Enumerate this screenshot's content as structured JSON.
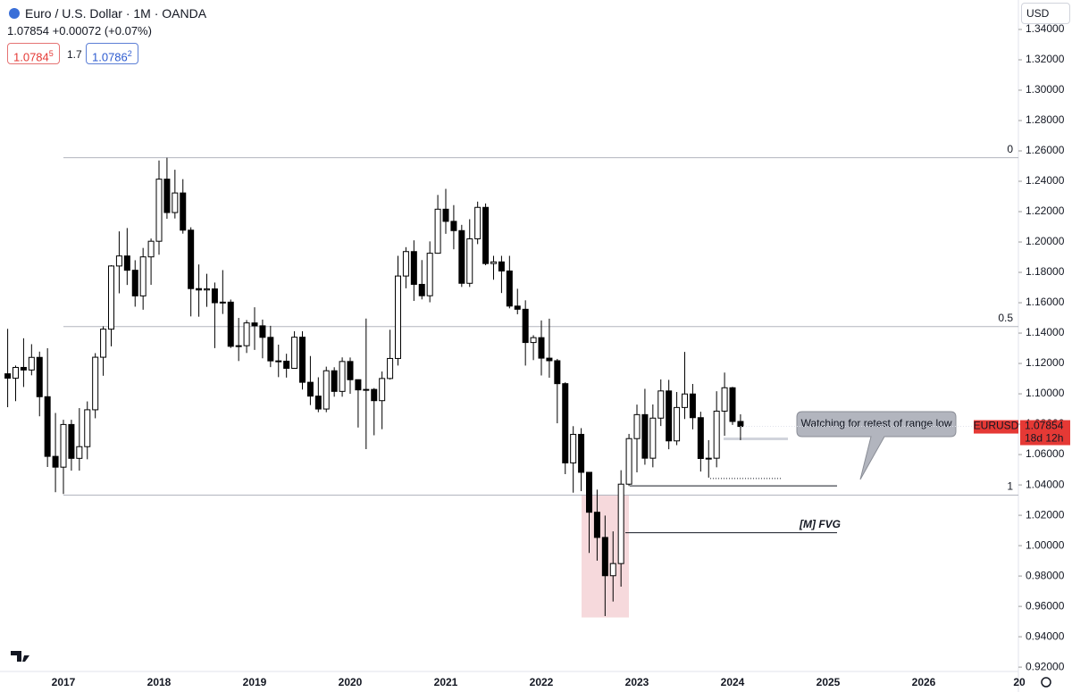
{
  "header": {
    "symbol": "Euro / U.S. Dollar · 1M · OANDA",
    "quote": "1.07854",
    "change": "+0.00072 (+0.07%)",
    "bid": {
      "main": "1.0784",
      "pip": "5"
    },
    "spread": "1.7",
    "ask": {
      "main": "1.0786",
      "pip": "2"
    },
    "currency": "USD"
  },
  "chart_data": {
    "type": "candlestick",
    "up_color": "#ffffff",
    "down_color": "#000000",
    "border_color": "#000000",
    "xticks": [
      "2017",
      "2018",
      "2019",
      "2020",
      "2021",
      "2022",
      "2023",
      "2024",
      "2025",
      "2026",
      "20"
    ],
    "open": [
      1.1132,
      1.1103,
      1.1174,
      1.1157,
      1.124,
      1.0981,
      1.0588,
      1.0517,
      1.0798,
      1.0575,
      1.0652,
      1.0895,
      1.1241,
      1.1426,
      1.1842,
      1.1908,
      1.1814,
      1.1645,
      1.1902,
      1.2005,
      1.2414,
      1.2194,
      1.2323,
      1.2078,
      1.1693,
      1.1684,
      1.1691,
      1.16,
      1.1604,
      1.1313,
      1.1317,
      1.1467,
      1.1448,
      1.1372,
      1.1217,
      1.1215,
      1.1168,
      1.1373,
      1.1076,
      1.0985,
      1.09,
      1.1152,
      1.1016,
      1.1213,
      1.1093,
      1.1026,
      1.1029,
      1.0955,
      1.1101,
      1.1233,
      1.1776,
      1.1937,
      1.1721,
      1.1646,
      1.1926,
      1.2216,
      1.2136,
      1.2075,
      1.1728,
      1.2021,
      1.2228,
      1.1858,
      1.1869,
      1.1809,
      1.1578,
      1.1557,
      1.1338,
      1.137,
      1.1235,
      1.1218,
      1.1067,
      1.0545,
      1.0733,
      1.0483,
      1.022,
      1.0054,
      0.9802,
      0.9882,
      1.0405,
      1.0705,
      1.0863,
      1.0576,
      1.084,
      1.1019,
      1.069,
      1.091,
      1.0999,
      1.0843,
      1.0574,
      1.0576,
      1.0886,
      1.104,
      1.0818
    ],
    "high": [
      1.1428,
      1.1186,
      1.1366,
      1.1327,
      1.1278,
      1.13,
      1.0874,
      1.0829,
      1.0829,
      1.0906,
      1.095,
      1.1268,
      1.1445,
      1.1847,
      1.207,
      1.2092,
      1.188,
      1.1961,
      1.2023,
      1.2537,
      1.2555,
      1.2476,
      1.2414,
      1.2097,
      1.1852,
      1.1791,
      1.1733,
      1.1815,
      1.1621,
      1.15,
      1.1486,
      1.157,
      1.1489,
      1.1448,
      1.1324,
      1.1264,
      1.1412,
      1.1412,
      1.1249,
      1.1109,
      1.1179,
      1.1175,
      1.124,
      1.1239,
      1.1095,
      1.1496,
      1.1038,
      1.1147,
      1.1422,
      1.1909,
      1.1966,
      1.2011,
      1.1881,
      1.2004,
      1.231,
      1.235,
      1.2243,
      1.2113,
      1.215,
      1.2266,
      1.2254,
      1.1909,
      1.1909,
      1.1909,
      1.1692,
      1.1616,
      1.1386,
      1.1483,
      1.1495,
      1.123,
      1.1076,
      1.0787,
      1.0774,
      1.0486,
      1.0369,
      1.0198,
      1.0094,
      1.0497,
      1.0736,
      1.0929,
      1.1033,
      1.093,
      1.1095,
      1.1092,
      1.1012,
      1.1276,
      1.1065,
      1.0882,
      1.0695,
      1.1017,
      1.114,
      1.1046,
      1.0865
    ],
    "low": [
      1.0912,
      1.0952,
      1.1045,
      1.1122,
      1.0852,
      1.0518,
      1.0352,
      1.034,
      1.0494,
      1.0494,
      1.0569,
      1.0839,
      1.1119,
      1.1313,
      1.1662,
      1.1717,
      1.1574,
      1.1554,
      1.1718,
      1.1916,
      1.2153,
      1.2155,
      1.2055,
      1.151,
      1.1508,
      1.1573,
      1.1301,
      1.1526,
      1.1302,
      1.1216,
      1.1269,
      1.1289,
      1.1234,
      1.1176,
      1.111,
      1.1107,
      1.1181,
      1.1028,
      1.0926,
      1.0879,
      1.0879,
      1.0981,
      1.0981,
      1.1,
      1.0778,
      1.0636,
      1.0727,
      1.0767,
      1.1094,
      1.1186,
      1.1695,
      1.1612,
      1.1622,
      1.1603,
      1.1923,
      1.2054,
      1.1952,
      1.1704,
      1.1704,
      1.1986,
      1.1847,
      1.1752,
      1.1664,
      1.1563,
      1.1524,
      1.1186,
      1.1222,
      1.1121,
      1.1106,
      1.0806,
      1.0471,
      1.0349,
      1.0359,
      0.9952,
      0.9901,
      0.9536,
      0.9632,
      0.973,
      1.0393,
      1.0483,
      1.0533,
      1.0516,
      1.0788,
      1.0635,
      1.0662,
      1.0834,
      1.0766,
      1.0488,
      1.0448,
      1.0516,
      1.0724,
      1.0795,
      1.0695
    ],
    "close": [
      1.1103,
      1.1174,
      1.1157,
      1.124,
      1.0981,
      1.0588,
      1.0517,
      1.0798,
      1.0575,
      1.0652,
      1.0895,
      1.1241,
      1.1426,
      1.1842,
      1.1908,
      1.1814,
      1.1645,
      1.1902,
      1.2005,
      1.2414,
      1.2194,
      1.2323,
      1.2078,
      1.1693,
      1.1684,
      1.1691,
      1.16,
      1.1604,
      1.1313,
      1.1317,
      1.1467,
      1.1448,
      1.1372,
      1.1217,
      1.1215,
      1.1168,
      1.1373,
      1.1076,
      1.0985,
      1.09,
      1.1152,
      1.1016,
      1.1213,
      1.1093,
      1.1026,
      1.1029,
      1.0955,
      1.1101,
      1.1233,
      1.1776,
      1.1937,
      1.1721,
      1.1646,
      1.1926,
      1.2216,
      1.2136,
      1.2075,
      1.1728,
      1.2021,
      1.2228,
      1.1858,
      1.1869,
      1.1809,
      1.1578,
      1.1557,
      1.1338,
      1.137,
      1.1235,
      1.1218,
      1.1067,
      1.0545,
      1.0733,
      1.0483,
      1.022,
      1.0054,
      0.9802,
      0.9882,
      1.0405,
      1.0705,
      1.0863,
      1.0576,
      1.084,
      1.1019,
      1.069,
      1.091,
      1.0999,
      1.0843,
      1.0574,
      1.0576,
      1.0886,
      1.104,
      1.0818,
      1.0785
    ],
    "ylim": [
      0.9036,
      1.3594
    ],
    "yticks": [
      {
        "value": 0.92,
        "label": "0.92000"
      },
      {
        "value": 0.94,
        "label": "0.94000"
      },
      {
        "value": 0.96,
        "label": "0.96000"
      },
      {
        "value": 0.98,
        "label": "0.98000"
      },
      {
        "value": 1.0,
        "label": "1.00000"
      },
      {
        "value": 1.02,
        "label": "1.02000"
      },
      {
        "value": 1.04,
        "label": "1.04000"
      },
      {
        "value": 1.06,
        "label": "1.06000"
      },
      {
        "value": 1.08,
        "label": "1.08000"
      },
      {
        "value": 1.1,
        "label": "1.10000"
      },
      {
        "value": 1.12,
        "label": "1.12000"
      },
      {
        "value": 1.14,
        "label": "1.14000"
      },
      {
        "value": 1.16,
        "label": "1.16000"
      },
      {
        "value": 1.18,
        "label": "1.18000"
      },
      {
        "value": 1.2,
        "label": "1.20000"
      },
      {
        "value": 1.22,
        "label": "1.22000"
      },
      {
        "value": 1.24,
        "label": "1.24000"
      },
      {
        "value": 1.26,
        "label": "1.26000"
      },
      {
        "value": 1.28,
        "label": "1.28000"
      },
      {
        "value": 1.3,
        "label": "1.30000"
      },
      {
        "value": 1.32,
        "label": "1.32000"
      },
      {
        "value": 1.34,
        "label": "1.34000"
      }
    ],
    "fib_levels": [
      {
        "value": 1.2555,
        "label": "0"
      },
      {
        "value": 1.1443,
        "label": "0.5"
      },
      {
        "value": 1.0333,
        "label": "1"
      }
    ],
    "fvg_zone": {
      "top": 1.0333,
      "bottom": 0.9527
    },
    "fvg_line": {
      "value": 1.0085,
      "label": "[M] FVG"
    },
    "range_low_line": 1.0394,
    "dotted_line": 1.0442,
    "target_line": 1.0703,
    "callout": "Watching for retest of range low",
    "last_price": {
      "value": 1.07854,
      "label": "1.07854",
      "symbol": "EURUSD",
      "countdown": "18d 12h"
    }
  }
}
